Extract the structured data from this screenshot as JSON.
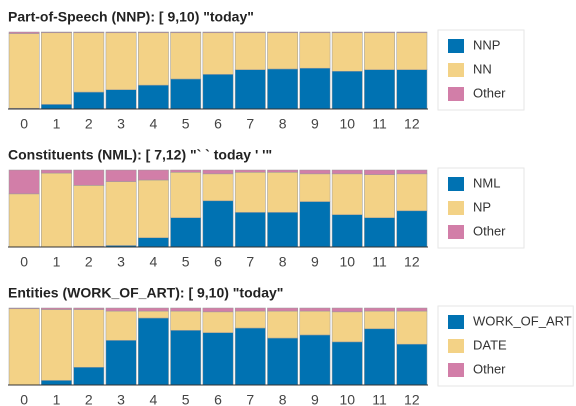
{
  "chart_data": [
    {
      "type": "stacked_bar",
      "title": "Part-of-Speech (NNP): [ 9,10) \"today\"",
      "categories": [
        "0",
        "1",
        "2",
        "3",
        "4",
        "5",
        "6",
        "7",
        "8",
        "9",
        "10",
        "11",
        "12"
      ],
      "ylim": [
        0,
        1
      ],
      "legend": "right",
      "series": [
        {
          "name": "NNP",
          "color": "#0072b2",
          "values": [
            0.01,
            0.06,
            0.22,
            0.25,
            0.31,
            0.39,
            0.45,
            0.51,
            0.52,
            0.53,
            0.49,
            0.51,
            0.51
          ]
        },
        {
          "name": "NN",
          "color": "#f3d286",
          "values": [
            0.97,
            0.93,
            0.77,
            0.74,
            0.68,
            0.6,
            0.54,
            0.48,
            0.47,
            0.46,
            0.5,
            0.48,
            0.48
          ]
        },
        {
          "name": "Other",
          "color": "#d27ea8",
          "values": [
            0.02,
            0.01,
            0.01,
            0.01,
            0.01,
            0.01,
            0.01,
            0.01,
            0.01,
            0.01,
            0.01,
            0.01,
            0.01
          ]
        }
      ]
    },
    {
      "type": "stacked_bar",
      "title": "Constituents (NML): [ 7,12) \"` ` today ' '\"",
      "categories": [
        "0",
        "1",
        "2",
        "3",
        "4",
        "5",
        "6",
        "7",
        "8",
        "9",
        "10",
        "11",
        "12"
      ],
      "ylim": [
        0,
        1
      ],
      "legend": "right",
      "series": [
        {
          "name": "NML",
          "color": "#0072b2",
          "values": [
            0,
            0,
            0.01,
            0.02,
            0.12,
            0.38,
            0.6,
            0.45,
            0.45,
            0.59,
            0.42,
            0.38,
            0.47
          ]
        },
        {
          "name": "NP",
          "color": "#f3d286",
          "values": [
            0.69,
            0.96,
            0.79,
            0.83,
            0.75,
            0.59,
            0.35,
            0.52,
            0.52,
            0.36,
            0.53,
            0.56,
            0.48
          ]
        },
        {
          "name": "Other",
          "color": "#d27ea8",
          "values": [
            0.31,
            0.04,
            0.2,
            0.15,
            0.13,
            0.03,
            0.05,
            0.03,
            0.03,
            0.05,
            0.05,
            0.06,
            0.05
          ]
        }
      ]
    },
    {
      "type": "stacked_bar",
      "title": "Entities (WORK_OF_ART): [ 9,10) \"today\"",
      "categories": [
        "0",
        "1",
        "2",
        "3",
        "4",
        "5",
        "6",
        "7",
        "8",
        "9",
        "10",
        "11",
        "12"
      ],
      "ylim": [
        0,
        1
      ],
      "legend": "right",
      "series": [
        {
          "name": "WORK_OF_ART",
          "color": "#0072b2",
          "values": [
            0,
            0.06,
            0.23,
            0.58,
            0.87,
            0.71,
            0.68,
            0.74,
            0.61,
            0.65,
            0.56,
            0.73,
            0.53
          ]
        },
        {
          "name": "DATE",
          "color": "#f3d286",
          "values": [
            0.99,
            0.92,
            0.75,
            0.38,
            0.09,
            0.25,
            0.27,
            0.22,
            0.35,
            0.31,
            0.39,
            0.23,
            0.43
          ]
        },
        {
          "name": "Other",
          "color": "#d27ea8",
          "values": [
            0.01,
            0.02,
            0.02,
            0.04,
            0.04,
            0.04,
            0.05,
            0.04,
            0.04,
            0.04,
            0.05,
            0.04,
            0.04
          ]
        }
      ]
    }
  ]
}
